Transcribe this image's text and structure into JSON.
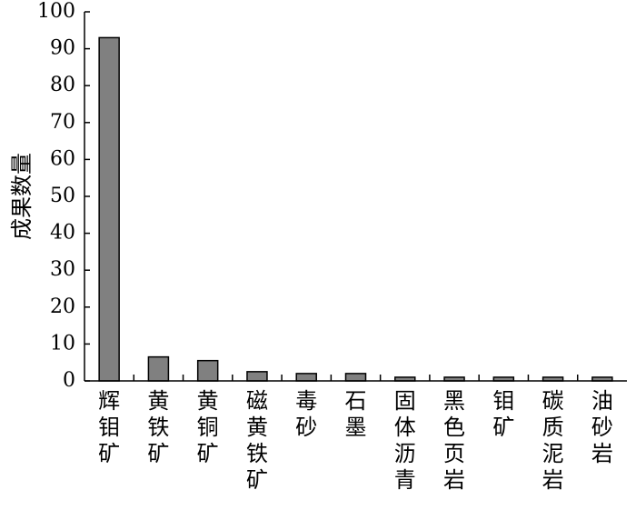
{
  "chart_data": {
    "type": "bar",
    "title": "",
    "xlabel": "",
    "ylabel": "成果数量",
    "ylim": [
      0,
      100
    ],
    "yticks": [
      0,
      10,
      20,
      30,
      40,
      50,
      60,
      70,
      80,
      90,
      100
    ],
    "grid": false,
    "bar_color": "#808080",
    "categories": [
      "辉钼矿",
      "黄铁矿",
      "黄铜矿",
      "磁黄铁矿",
      "毒砂",
      "石墨",
      "固体沥青",
      "黑色页岩",
      "钼矿",
      "碳质泥岩",
      "油砂岩"
    ],
    "values": [
      93,
      6.5,
      5.5,
      2.5,
      2,
      2,
      1,
      1,
      1,
      1,
      1
    ]
  }
}
